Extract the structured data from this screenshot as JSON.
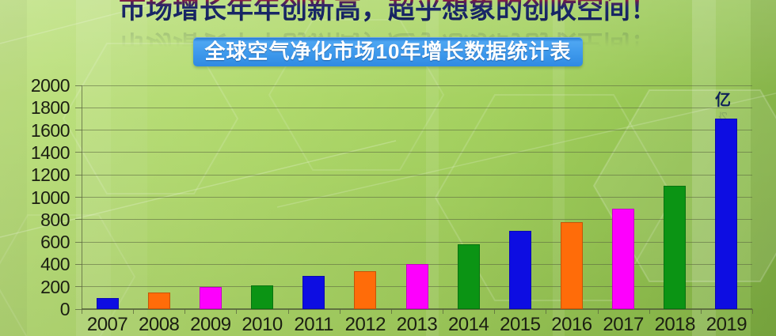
{
  "title": "市场增长年年创新高，超乎想象的创收空间！",
  "banner": "全球空气净化市场10年增长数据统计表",
  "unit_label": "亿",
  "chart_data": {
    "type": "bar",
    "title": "全球空气净化市场10年增长数据统计表",
    "xlabel": "",
    "ylabel": "亿",
    "categories": [
      "2007",
      "2008",
      "2009",
      "2010",
      "2011",
      "2012",
      "2013",
      "2014",
      "2015",
      "2016",
      "2017",
      "2018",
      "2019"
    ],
    "values": [
      100,
      150,
      200,
      210,
      300,
      340,
      400,
      580,
      700,
      780,
      900,
      1100,
      1700
    ],
    "yticks": [
      2000,
      1800,
      1600,
      1400,
      1200,
      1000,
      800,
      600,
      400,
      200,
      0
    ],
    "ylim": [
      0,
      2000
    ],
    "grid": true,
    "legend": "none",
    "bar_color_cycle": [
      "#0d0de2",
      "#ff6c09",
      "#fd00fd",
      "#0b9414"
    ]
  },
  "colors": {
    "background_top": "#c0e284",
    "background_bottom": "#83b544",
    "banner_blue": "#3e99ec",
    "title_red": "#d41c28",
    "title_navy": "#1b2a6e",
    "grid": "#58633e",
    "axis_text": "#1b1e12",
    "unit_navy": "#0e2058"
  }
}
